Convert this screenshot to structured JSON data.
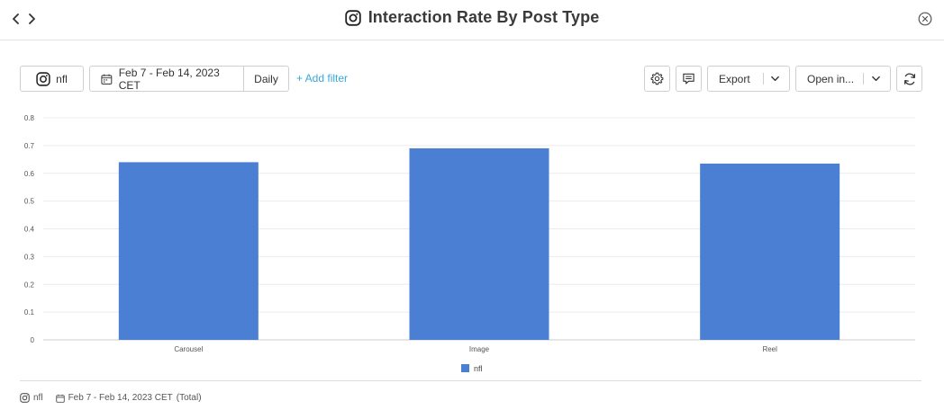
{
  "header": {
    "title": "Interaction Rate By Post Type",
    "back_icon": "chevron-left-icon",
    "forward_icon": "chevron-right-icon",
    "title_icon": "instagram-icon",
    "close_icon": "close-circle-icon"
  },
  "toolbar": {
    "account_label": "nfl",
    "date_range": "Feb 7 - Feb 14, 2023 CET",
    "granularity": "Daily",
    "add_filter": "+ Add filter",
    "export_label": "Export",
    "open_label": "Open in...",
    "accent_color": "#3aa8d8"
  },
  "chart_data": {
    "type": "bar",
    "categories": [
      "Carousel",
      "Image",
      "Reel"
    ],
    "series": [
      {
        "name": "nfl",
        "values": [
          0.64,
          0.69,
          0.635
        ],
        "color": "#4a7fd4"
      }
    ],
    "y_ticks": [
      "0",
      "0.1",
      "0.2",
      "0.3",
      "0.4",
      "0.5",
      "0.6",
      "0.7",
      "0.8"
    ],
    "ylim": [
      0,
      0.8
    ],
    "grid": true,
    "legend_position": "bottom"
  },
  "footer": {
    "account": "nfl",
    "date_range": "Feb 7 - Feb 14, 2023 CET",
    "total_label": "(Total)"
  }
}
